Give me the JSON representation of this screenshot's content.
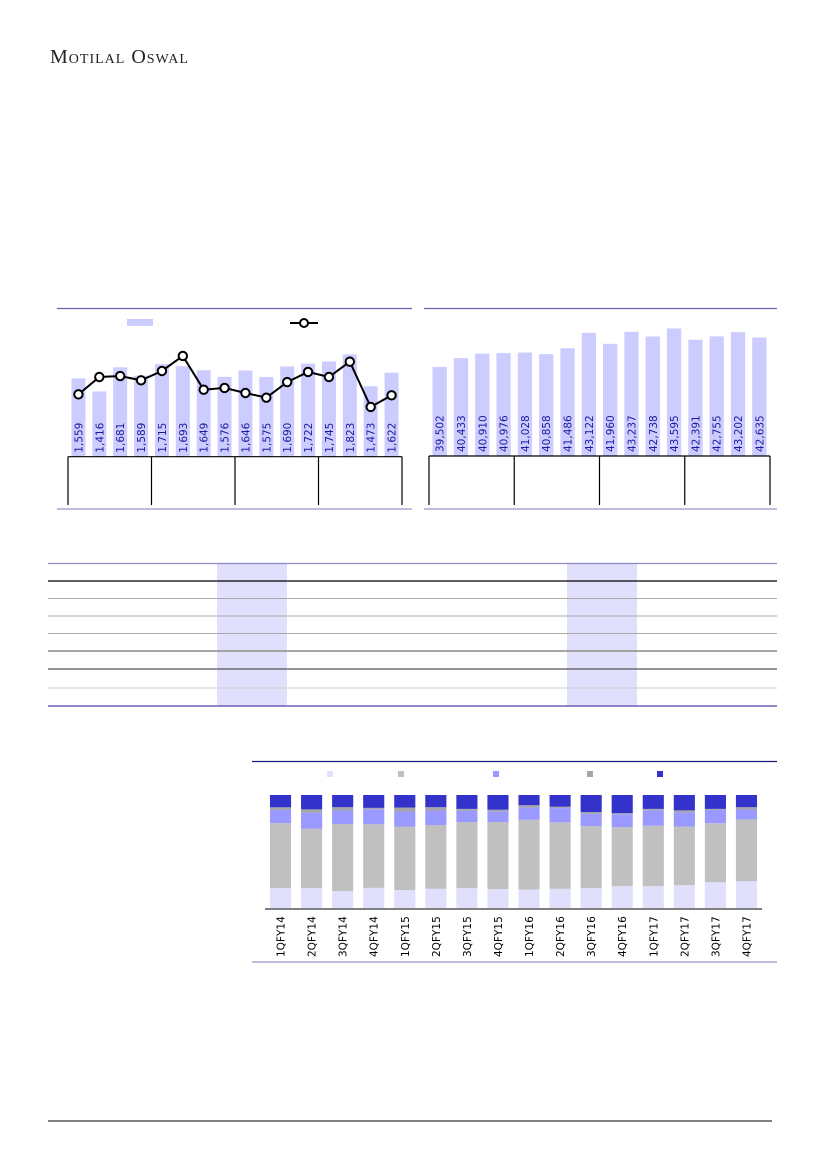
{
  "header": {
    "logo_text": "Motilal Oswal"
  },
  "colors": {
    "bar": "#ccccff",
    "line": "#000000",
    "label": "#1a1aa0",
    "rule": "#6b5fb5",
    "table_highlight": "#e0e0fc",
    "stack": [
      "#e0e0fc",
      "#c0c0c0",
      "#9999ff",
      "#a6a6a6",
      "#3333cc"
    ]
  },
  "chart_data": [
    {
      "type": "bar+line",
      "categories_count": 16,
      "bar_values": [
        1559,
        1416,
        1681,
        1589,
        1715,
        1693,
        1649,
        1576,
        1646,
        1575,
        1690,
        1722,
        1745,
        1823,
        1473,
        1622
      ],
      "bar_labels": [
        "1,559",
        "1,416",
        "1,681",
        "1,589",
        "1,715",
        "1,693",
        "1,649",
        "1,576",
        "1,646",
        "1,575",
        "1,690",
        "1,722",
        "1,745",
        "1,823",
        "1,473",
        "1,622"
      ],
      "ylim": [
        700,
        2200
      ],
      "line_values": [
        45.6,
        58.3,
        59.0,
        55.9,
        62.7,
        73.7,
        49.0,
        50.3,
        46.6,
        43.2,
        54.6,
        62.0,
        58.3,
        69.5,
        36.4,
        44.9
      ],
      "line_ylim": [
        0,
        100
      ],
      "group_count": 4,
      "legend": "top"
    },
    {
      "type": "bar",
      "categories_count": 16,
      "values": [
        39502,
        40433,
        40910,
        40976,
        41028,
        40858,
        41486,
        43122,
        41960,
        43237,
        42738,
        43595,
        42391,
        42755,
        43202,
        42635
      ],
      "bar_labels": [
        "39,502",
        "40,433",
        "40,910",
        "40,976",
        "41,028",
        "40,858",
        "41,486",
        "43,122",
        "41,960",
        "43,237",
        "42,738",
        "43,595",
        "42,391",
        "42,755",
        "43,202",
        "42,635"
      ],
      "ylim": [
        30000,
        44500
      ],
      "group_count": 4
    },
    {
      "type": "stacked-bar-100",
      "categories": [
        "1QFY14",
        "2QFY14",
        "3QFY14",
        "4QFY14",
        "1QFY15",
        "2QFY15",
        "3QFY15",
        "4QFY15",
        "1QFY16",
        "2QFY16",
        "3QFY16",
        "4QFY16",
        "1QFY17",
        "2QFY17",
        "3QFY17",
        "4QFY17"
      ],
      "series": [
        {
          "values": [
            17.5,
            17.5,
            14.9,
            17.8,
            15.8,
            17.0,
            17.5,
            16.7,
            16.4,
            17.0,
            17.5,
            19.3,
            19.3,
            20.2,
            22.8,
            23.7
          ]
        },
        {
          "values": [
            57.6,
            52.6,
            59.4,
            56.4,
            56.1,
            56.4,
            58.5,
            59.4,
            61.7,
            58.8,
            55.0,
            52.3,
            53.5,
            51.8,
            52.3,
            54.7
          ]
        },
        {
          "values": [
            11.7,
            14.3,
            12.0,
            13.2,
            13.5,
            12.9,
            10.2,
            9.4,
            10.8,
            12.6,
            10.8,
            11.4,
            13.7,
            12.6,
            11.7,
            8.8
          ]
        },
        {
          "values": [
            2.3,
            2.9,
            2.9,
            1.2,
            3.5,
            2.9,
            1.5,
            1.5,
            2.0,
            1.2,
            1.5,
            0.9,
            1.2,
            1.8,
            0.9,
            2.0
          ]
        },
        {
          "values": [
            10.9,
            12.7,
            10.8,
            11.4,
            11.1,
            10.8,
            12.3,
            13.0,
            9.1,
            10.4,
            15.2,
            16.1,
            12.3,
            13.6,
            12.3,
            10.8
          ]
        }
      ],
      "ylim": [
        0,
        100
      ],
      "legend": "top"
    }
  ]
}
